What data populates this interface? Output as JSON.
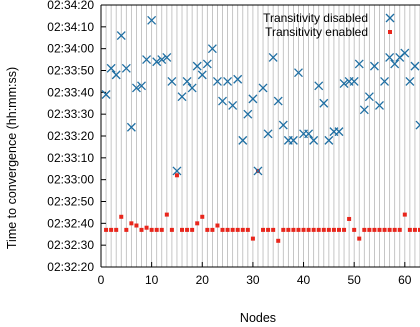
{
  "chart_data": {
    "type": "scatter",
    "xlabel": "Nodes",
    "ylabel": "Time to convergence (hh:mm:ss)",
    "xlim": [
      0,
      63
    ],
    "ylim": [
      "02:32:20",
      "02:34:20"
    ],
    "x_ticks": [
      "0",
      "10",
      "20",
      "30",
      "40",
      "50",
      "60"
    ],
    "y_ticks": [
      "02:32:20",
      "02:32:30",
      "02:32:40",
      "02:32:50",
      "02:33:00",
      "02:33:10",
      "02:33:20",
      "02:33:30",
      "02:33:40",
      "02:33:50",
      "02:34:00",
      "02:34:10",
      "02:34:20"
    ],
    "grid": "vertical line at every node",
    "legend_position": "top-right",
    "series": [
      {
        "name": "Transitivity disabled",
        "marker": "x",
        "color": "#1f6fa3",
        "x": [
          1,
          2,
          3,
          4,
          5,
          6,
          7,
          8,
          9,
          10,
          11,
          12,
          13,
          14,
          15,
          16,
          17,
          18,
          19,
          20,
          21,
          22,
          23,
          24,
          25,
          26,
          27,
          28,
          29,
          30,
          31,
          32,
          33,
          34,
          35,
          36,
          37,
          38,
          39,
          40,
          41,
          42,
          43,
          44,
          45,
          46,
          47,
          48,
          49,
          50,
          51,
          52,
          53,
          54,
          55,
          56,
          57,
          58,
          59,
          60,
          61,
          62,
          63
        ],
        "y": [
          "02:33:39",
          "02:33:51",
          "02:33:48",
          "02:34:06",
          "02:33:51",
          "02:33:24",
          "02:33:42",
          "02:33:43",
          "02:33:55",
          "02:34:13",
          "02:33:54",
          "02:33:55",
          "02:33:56",
          "02:33:45",
          "02:33:04",
          "02:33:38",
          "02:33:45",
          "02:33:42",
          "02:33:52",
          "02:33:48",
          "02:33:53",
          "02:34:00",
          "02:33:45",
          "02:33:36",
          "02:33:45",
          "02:33:34",
          "02:33:46",
          "02:33:18",
          "02:33:30",
          "02:33:37",
          "02:33:04",
          "02:33:42",
          "02:33:21",
          "02:33:56",
          "02:33:36",
          "02:33:25",
          "02:33:18",
          "02:33:18",
          "02:33:49",
          "02:33:21",
          "02:33:21",
          "02:33:18",
          "02:33:43",
          "02:33:35",
          "02:33:18",
          "02:33:22",
          "02:33:22",
          "02:33:44",
          "02:33:45",
          "02:33:45",
          "02:33:53",
          "02:33:32",
          "02:33:38",
          "02:33:52",
          "02:33:34",
          "02:33:45",
          "02:33:56",
          "02:33:53",
          "02:33:56",
          "02:33:58",
          "02:33:45",
          "02:33:52",
          "02:33:25"
        ]
      },
      {
        "name": "Transitivity enabled",
        "marker": "square",
        "color": "#e8261c",
        "x": [
          1,
          2,
          3,
          4,
          5,
          6,
          7,
          8,
          9,
          10,
          11,
          12,
          13,
          14,
          15,
          16,
          17,
          18,
          19,
          20,
          21,
          22,
          23,
          24,
          25,
          26,
          27,
          28,
          29,
          30,
          31,
          32,
          33,
          34,
          35,
          36,
          37,
          38,
          39,
          40,
          41,
          42,
          43,
          44,
          45,
          46,
          47,
          48,
          49,
          50,
          51,
          52,
          53,
          54,
          55,
          56,
          57,
          58,
          59,
          60,
          61,
          62,
          63
        ],
        "y": [
          "02:32:37",
          "02:32:37",
          "02:32:37",
          "02:32:43",
          "02:32:37",
          "02:32:40",
          "02:32:39",
          "02:32:37",
          "02:32:38",
          "02:32:37",
          "02:32:37",
          "02:32:37",
          "02:32:44",
          "02:32:37",
          "02:33:02",
          "02:32:37",
          "02:32:37",
          "02:32:37",
          "02:32:40",
          "02:32:43",
          "02:32:37",
          "02:32:37",
          "02:32:39",
          "02:32:37",
          "02:32:37",
          "02:32:37",
          "02:32:37",
          "02:32:37",
          "02:32:37",
          "02:32:33",
          "02:33:04",
          "02:32:37",
          "02:32:37",
          "02:32:37",
          "02:32:32",
          "02:32:37",
          "02:32:37",
          "02:32:37",
          "02:32:37",
          "02:32:37",
          "02:32:37",
          "02:32:37",
          "02:32:37",
          "02:32:37",
          "02:32:37",
          "02:32:37",
          "02:32:37",
          "02:32:37",
          "02:32:42",
          "02:32:37",
          "02:32:33",
          "02:32:37",
          "02:32:37",
          "02:32:37",
          "02:32:37",
          "02:32:37",
          "02:32:37",
          "02:32:37",
          "02:32:37",
          "02:32:44",
          "02:32:37",
          "02:32:37",
          "02:32:37"
        ]
      }
    ]
  }
}
